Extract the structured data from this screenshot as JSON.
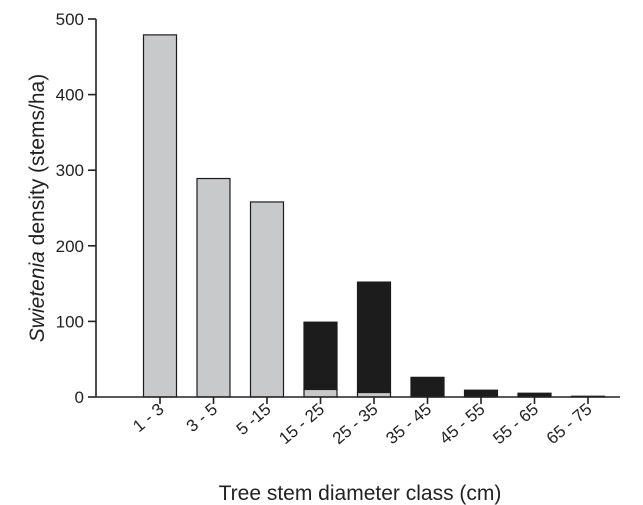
{
  "chart_data": {
    "type": "bar",
    "stacked": true,
    "categories": [
      "1 - 3",
      "3 - 5",
      "5 -15",
      "15 - 25",
      "25 - 35",
      "35 - 45",
      "45 - 55",
      "55 - 65",
      "65 - 75"
    ],
    "series": [
      {
        "color": "#c8c9cb",
        "values": [
          479,
          289,
          258,
          10,
          6,
          0,
          0,
          0,
          0
        ]
      },
      {
        "color": "#1c1c1c",
        "values": [
          0,
          0,
          0,
          89,
          146,
          26,
          9,
          5,
          1
        ]
      }
    ],
    "ylim": [
      0,
      500
    ],
    "yticks": [
      0,
      100,
      200,
      300,
      400,
      500
    ],
    "ylabel_italic": "Swietenia",
    "ylabel_rest": " density (stems/ha)",
    "xlabel": "Tree stem diameter class (cm)",
    "grid": false,
    "legend": "none"
  }
}
